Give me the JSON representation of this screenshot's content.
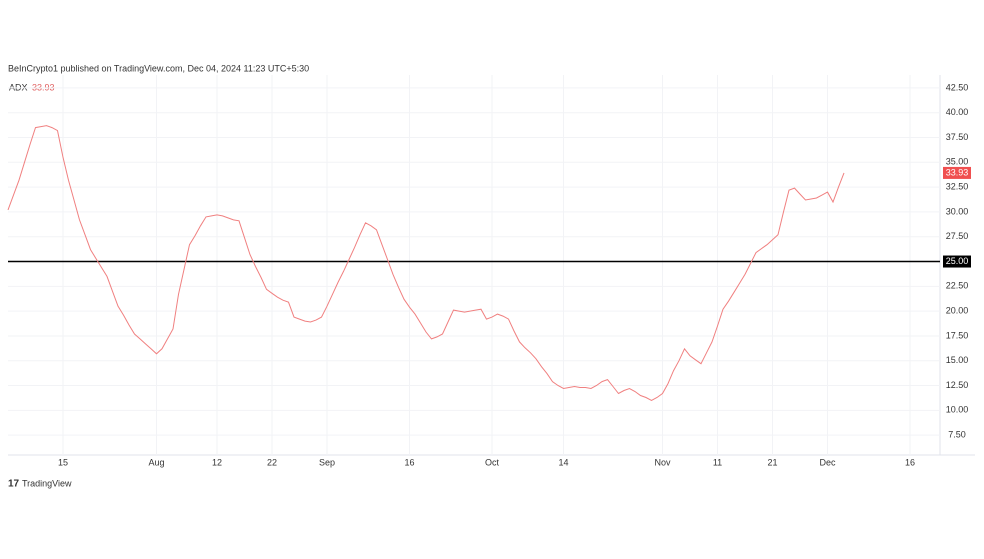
{
  "header": {
    "text": "BeInCrypto1 published on TradingView.com, Dec 04, 2024 11:23 UTC+5:30"
  },
  "footer": {
    "text": "TradingView"
  },
  "chart_data": {
    "type": "line",
    "categories": [
      null,
      null,
      null,
      null,
      null,
      null,
      null,
      null,
      null,
      null,
      "15",
      null,
      null,
      null,
      null,
      null,
      null,
      null,
      null,
      null,
      null,
      null,
      null,
      null,
      null,
      null,
      null,
      "Aug",
      null,
      null,
      null,
      null,
      null,
      null,
      null,
      null,
      null,
      null,
      "12",
      null,
      null,
      null,
      null,
      null,
      null,
      null,
      null,
      null,
      "22",
      null,
      null,
      null,
      null,
      null,
      null,
      null,
      null,
      null,
      "Sep",
      null,
      null,
      null,
      null,
      null,
      null,
      null,
      null,
      null,
      null,
      null,
      null,
      null,
      null,
      "16",
      null,
      null,
      null,
      null,
      null,
      null,
      null,
      null,
      null,
      null,
      null,
      null,
      null,
      null,
      "Oct",
      null,
      null,
      null,
      null,
      null,
      null,
      null,
      null,
      null,
      null,
      null,
      null,
      "14",
      null,
      null,
      null,
      null,
      null,
      null,
      null,
      null,
      null,
      null,
      null,
      null,
      null,
      null,
      null,
      null,
      null,
      "Nov",
      null,
      null,
      null,
      null,
      null,
      null,
      null,
      null,
      null,
      "11",
      null,
      null,
      null,
      null,
      null,
      null,
      null,
      null,
      null,
      "21",
      null,
      null,
      null,
      null,
      null,
      null,
      null,
      null,
      null,
      "Dec",
      null,
      null,
      null,
      null,
      null,
      null,
      null,
      null,
      null,
      null,
      null,
      null,
      null,
      null,
      "16",
      null,
      null,
      null,
      null,
      null
    ],
    "series": [
      {
        "name": "ADX",
        "color": "#f08080",
        "values": [
          30.2,
          31.7,
          33.2,
          35.0,
          36.8,
          38.5,
          38.6,
          38.7,
          38.5,
          38.2,
          35.5,
          33.2,
          31.2,
          29.2,
          27.7,
          26.2,
          25.3,
          24.4,
          23.5,
          22.0,
          20.5,
          19.6,
          18.6,
          17.7,
          17.2,
          16.7,
          16.2,
          15.7,
          16.2,
          17.2,
          18.2,
          21.7,
          24.2,
          26.7,
          27.6,
          28.6,
          29.5,
          29.6,
          29.7,
          29.6,
          29.4,
          29.2,
          29.1,
          27.4,
          25.7,
          24.5,
          23.4,
          22.2,
          21.8,
          21.4,
          21.1,
          20.9,
          19.4,
          19.2,
          19.0,
          18.9,
          19.1,
          19.4,
          20.5,
          21.7,
          22.9,
          24.0,
          25.2,
          26.4,
          27.7,
          28.9,
          28.6,
          28.2,
          26.7,
          25.2,
          23.7,
          22.4,
          21.2,
          20.4,
          19.7,
          18.8,
          17.9,
          17.2,
          17.4,
          17.7,
          18.9,
          20.1,
          20.0,
          19.9,
          20.0,
          20.1,
          20.2,
          19.2,
          19.4,
          19.7,
          19.5,
          19.2,
          18.0,
          16.9,
          16.3,
          15.8,
          15.2,
          14.4,
          13.7,
          12.9,
          12.5,
          12.2,
          12.3,
          12.4,
          12.3,
          12.3,
          12.2,
          12.5,
          12.9,
          13.1,
          12.4,
          11.7,
          12.0,
          12.2,
          11.9,
          11.5,
          11.3,
          11.0,
          11.3,
          11.7,
          12.7,
          14.0,
          15.0,
          16.2,
          15.5,
          15.1,
          14.7,
          15.8,
          16.9,
          18.5,
          20.2,
          21.0,
          21.9,
          22.8,
          23.7,
          24.8,
          25.9,
          26.3,
          26.7,
          27.2,
          27.7,
          30.0,
          32.2,
          32.4,
          31.8,
          31.2,
          31.3,
          31.4,
          31.7,
          32.0,
          31.0,
          32.5,
          33.93,
          null,
          null,
          null,
          null,
          null,
          null,
          null,
          null,
          null,
          null,
          null,
          null,
          null,
          null,
          null,
          null,
          null
        ]
      }
    ],
    "reference_line": {
      "value": 25,
      "label": "25.00",
      "color": "#000000"
    },
    "ylim": [
      5.5,
      43.8
    ],
    "yticks": [
      {
        "value": 7.5,
        "label": "7.50"
      },
      {
        "value": 10,
        "label": "10.00"
      },
      {
        "value": 12.5,
        "label": "12.50"
      },
      {
        "value": 15,
        "label": "15.00"
      },
      {
        "value": 17.5,
        "label": "17.50"
      },
      {
        "value": 20,
        "label": "20.00"
      },
      {
        "value": 22.5,
        "label": "22.50"
      },
      {
        "value": 25,
        "label": "25.00"
      },
      {
        "value": 27.5,
        "label": "27.50"
      },
      {
        "value": 30,
        "label": "30.00"
      },
      {
        "value": 32.5,
        "label": "32.50"
      },
      {
        "value": 35,
        "label": "35.00"
      },
      {
        "value": 37.5,
        "label": "37.50"
      },
      {
        "value": 40,
        "label": "40.00"
      },
      {
        "value": 42.5,
        "label": "42.50"
      }
    ],
    "grid": true
  }
}
